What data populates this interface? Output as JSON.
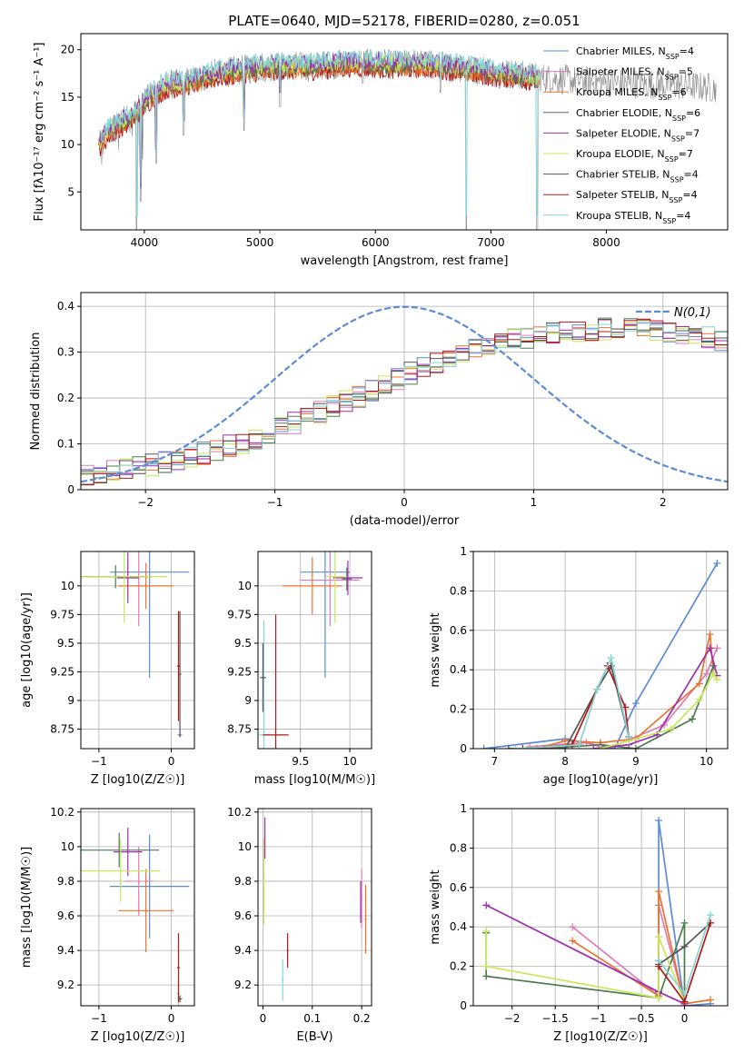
{
  "figure_title": "PLATE=0640, MJD=52178, FIBERID=0280, z=0.051",
  "colors": {
    "chabrier_miles": "#5B8BD6",
    "salpeter_miles": "#E47AB4",
    "kroupa_miles": "#E8742C",
    "chabrier_elodie": "#4E7A50",
    "salpeter_elodie": "#9B2FAE",
    "kroupa_elodie": "#C8E65A",
    "chabrier_stelib": "#555555",
    "salpeter_stelib": "#B21818",
    "kroupa_stelib": "#86D4D4",
    "normal_curve": "#5B8BD6"
  },
  "legend": [
    {
      "key": "chabrier_miles",
      "prefix": "Chabrier MILES, N",
      "sub": "SSP",
      "suffix": "=4"
    },
    {
      "key": "salpeter_miles",
      "prefix": "Salpeter MILES, N",
      "sub": "SSP",
      "suffix": "=5"
    },
    {
      "key": "kroupa_miles",
      "prefix": "Kroupa MILES, N",
      "sub": "SSP",
      "suffix": "=6"
    },
    {
      "key": "chabrier_elodie",
      "prefix": "Chabrier ELODIE, N",
      "sub": "SSP",
      "suffix": "=6"
    },
    {
      "key": "salpeter_elodie",
      "prefix": "Salpeter ELODIE, N",
      "sub": "SSP",
      "suffix": "=7"
    },
    {
      "key": "kroupa_elodie",
      "prefix": "Kroupa ELODIE, N",
      "sub": "SSP",
      "suffix": "=7"
    },
    {
      "key": "chabrier_stelib",
      "prefix": "Chabrier STELIB, N",
      "sub": "SSP",
      "suffix": "=4"
    },
    {
      "key": "salpeter_stelib",
      "prefix": "Salpeter STELIB, N",
      "sub": "SSP",
      "suffix": "=4"
    },
    {
      "key": "kroupa_stelib",
      "prefix": "Kroupa STELIB, N",
      "sub": "SSP",
      "suffix": "=4"
    }
  ],
  "chart_data": [
    {
      "id": "spectrum",
      "type": "line",
      "xlabel": "wavelength [Angstrom, rest frame]",
      "ylabel": "Flux [fλ10⁻¹⁷ erg cm⁻² s⁻¹ A⁻¹]",
      "xlim": [
        3450,
        9050
      ],
      "ylim": [
        1,
        21.7
      ],
      "xticks": [
        4000,
        5000,
        6000,
        7000,
        8000
      ],
      "yticks": [
        5,
        10,
        15,
        20
      ],
      "grid": false,
      "legend_position": "upper right",
      "continuum_x": [
        3600,
        3700,
        3800,
        3900,
        4000,
        4100,
        4200,
        4300,
        4400,
        4600,
        4800,
        5000,
        5200,
        5400,
        5600,
        5800,
        6000,
        6200,
        6400,
        6600,
        6800,
        7000,
        7200,
        7400,
        7500,
        7700,
        7900,
        8100,
        8300,
        8500,
        8700,
        8900
      ],
      "continuum_y": [
        10.0,
        11.5,
        12.3,
        13.0,
        14.5,
        15.6,
        16.3,
        16.4,
        16.7,
        17.4,
        17.8,
        18.1,
        18.3,
        18.2,
        18.4,
        18.6,
        18.5,
        18.4,
        18.5,
        18.3,
        18.0,
        17.6,
        17.4,
        17.1,
        17.0,
        16.8,
        16.6,
        16.5,
        16.4,
        16.3,
        16.2,
        16.0
      ],
      "model_xlim": [
        3600,
        7420
      ],
      "absorption_dips": [
        [
          3934,
          1.0
        ],
        [
          3969,
          4.0
        ],
        [
          4102,
          8.0
        ],
        [
          4340,
          11.0
        ],
        [
          4861,
          11.5
        ],
        [
          5175,
          14.0
        ],
        [
          5890,
          16.5
        ],
        [
          6563,
          15.5
        ],
        [
          6786,
          1.0
        ],
        [
          7400,
          1.0
        ]
      ]
    },
    {
      "id": "residual_hist",
      "type": "histogram",
      "xlabel": "(data-model)/error",
      "ylabel": "Normed distribution",
      "xlim": [
        -2.5,
        2.5
      ],
      "ylim": [
        0,
        0.43
      ],
      "xticks": [
        -2,
        -1,
        0,
        1,
        2
      ],
      "yticks": [
        0.0,
        0.1,
        0.2,
        0.3,
        0.4
      ],
      "grid": true,
      "bin_width": 0.1,
      "bin_start": -2.5,
      "mean_profile": [
        0.035,
        0.038,
        0.042,
        0.046,
        0.05,
        0.055,
        0.06,
        0.066,
        0.072,
        0.079,
        0.087,
        0.095,
        0.104,
        0.113,
        0.123,
        0.134,
        0.145,
        0.156,
        0.168,
        0.18,
        0.192,
        0.205,
        0.217,
        0.23,
        0.242,
        0.254,
        0.265,
        0.276,
        0.286,
        0.296,
        0.305,
        0.313,
        0.32,
        0.326,
        0.331,
        0.335,
        0.339,
        0.342,
        0.345,
        0.347,
        0.35,
        0.351,
        0.351,
        0.35,
        0.348,
        0.345,
        0.342,
        0.338,
        0.333,
        0.327,
        0.32,
        0.312,
        0.303,
        0.294,
        0.284,
        0.273,
        0.262,
        0.25,
        0.238,
        0.226,
        0.214,
        0.202,
        0.19,
        0.178,
        0.166,
        0.155,
        0.144,
        0.134,
        0.124,
        0.115,
        0.106,
        0.098,
        0.09,
        0.083,
        0.076,
        0.07,
        0.064,
        0.059,
        0.054,
        0.05,
        0.046,
        0.042,
        0.039,
        0.036,
        0.033,
        0.031,
        0.029,
        0.027,
        0.025,
        0.023,
        0.022,
        0.021,
        0.02,
        0.019,
        0.018,
        0.017,
        0.016,
        0.015,
        0.014,
        0.013
      ],
      "reference_curve": {
        "label": "N(0,1)",
        "mu": 0,
        "sigma": 1
      }
    },
    {
      "id": "age_vs_Z",
      "type": "errorbar",
      "xlabel": "Z [log10(Z/Z☉)]",
      "ylabel": "age  [log10(age/yr)]",
      "xlim": [
        -1.25,
        0.32
      ],
      "ylim": [
        8.58,
        10.3
      ],
      "xticks": [
        -1,
        0
      ],
      "yticks": [
        8.75,
        9.0,
        9.25,
        9.5,
        9.75,
        10.0
      ],
      "grid": true,
      "points": [
        {
          "key": "chabrier_miles",
          "x": -0.3,
          "xerr": 0.55,
          "y": 10.12,
          "yerr": 0.92
        },
        {
          "key": "chabrier_miles",
          "x": 0.12,
          "xerr": 0.03,
          "y": 8.7,
          "yerr": 0.02
        },
        {
          "key": "salpeter_miles",
          "x": -0.45,
          "xerr": 0.2,
          "y": 10.08,
          "yerr": 0.43
        },
        {
          "key": "kroupa_miles",
          "x": -0.35,
          "xerr": 0.38,
          "y": 10.0,
          "yerr": 0.2
        },
        {
          "key": "chabrier_elodie",
          "x": -0.77,
          "xerr": 0.5,
          "y": 10.08,
          "yerr": 0.1
        },
        {
          "key": "salpeter_elodie",
          "x": -0.6,
          "xerr": 0.15,
          "y": 10.07,
          "yerr": 0.22
        },
        {
          "key": "kroupa_elodie",
          "x": -0.65,
          "xerr": 0.6,
          "y": 10.08,
          "yerr": 0.4
        },
        {
          "key": "chabrier_stelib",
          "x": 0.12,
          "xerr": 0.02,
          "y": 9.23,
          "yerr": 0.55
        },
        {
          "key": "salpeter_stelib",
          "x": 0.1,
          "xerr": 0.02,
          "y": 9.3,
          "yerr": 0.48
        }
      ]
    },
    {
      "id": "age_vs_mass",
      "type": "errorbar",
      "xlabel": "mass [log10(M/M☉)]",
      "ylabel": "",
      "xlim": [
        9.07,
        10.22
      ],
      "ylim": [
        8.58,
        10.3
      ],
      "xticks": [
        9.5,
        10.0
      ],
      "yticks": [
        8.75,
        9.0,
        9.25,
        9.5,
        9.75,
        10.0
      ],
      "grid": true,
      "points": [
        {
          "key": "chabrier_miles",
          "x": 9.75,
          "xerr": 0.25,
          "y": 10.12,
          "yerr": 0.92
        },
        {
          "key": "salpeter_miles",
          "x": 9.8,
          "xerr": 0.3,
          "y": 10.05,
          "yerr": 0.4
        },
        {
          "key": "kroupa_miles",
          "x": 9.62,
          "xerr": 0.3,
          "y": 10.0,
          "yerr": 0.25
        },
        {
          "key": "chabrier_elodie",
          "x": 9.97,
          "xerr": 0.05,
          "y": 10.06,
          "yerr": 0.1
        },
        {
          "key": "salpeter_elodie",
          "x": 9.98,
          "xerr": 0.15,
          "y": 10.07,
          "yerr": 0.15
        },
        {
          "key": "kroupa_elodie",
          "x": 9.85,
          "xerr": 0.1,
          "y": 10.08,
          "yerr": 0.4
        },
        {
          "key": "kroupa_stelib",
          "x": 9.13,
          "xerr": 0.05,
          "y": 8.7,
          "yerr": 1.0
        },
        {
          "key": "salpeter_stelib",
          "x": 9.25,
          "xerr": 0.13,
          "y": 8.7,
          "yerr": 1.05
        },
        {
          "key": "chabrier_stelib",
          "x": 9.12,
          "xerr": 0.03,
          "y": 9.2,
          "yerr": 0.3
        }
      ]
    },
    {
      "id": "weight_vs_age",
      "type": "line",
      "xlabel": "age  [log10(age/yr)]",
      "ylabel": "mass weight",
      "xlim": [
        6.7,
        10.3
      ],
      "ylim": [
        0,
        1.0
      ],
      "xticks": [
        7,
        8,
        9,
        10
      ],
      "yticks": [
        0.0,
        0.2,
        0.4,
        0.6,
        0.8,
        1.0
      ],
      "grid": true,
      "series": [
        {
          "key": "chabrier_miles",
          "x": [
            6.85,
            8.0,
            8.7,
            9.0,
            10.15
          ],
          "y": [
            0.0,
            0.05,
            0.0,
            0.23,
            0.94
          ]
        },
        {
          "key": "salpeter_miles",
          "x": [
            7.5,
            8.3,
            8.6,
            9.4,
            10.0,
            10.15
          ],
          "y": [
            0.01,
            0.03,
            0.0,
            0.12,
            0.38,
            0.51
          ]
        },
        {
          "key": "kroupa_miles",
          "x": [
            7.6,
            8.0,
            8.5,
            9.0,
            9.9,
            10.05,
            10.1
          ],
          "y": [
            0.0,
            0.04,
            0.03,
            0.05,
            0.33,
            0.58,
            0.38
          ]
        },
        {
          "key": "chabrier_elodie",
          "x": [
            7.7,
            8.5,
            9.0,
            9.8,
            10.1
          ],
          "y": [
            0.0,
            0.02,
            0.0,
            0.15,
            0.42
          ]
        },
        {
          "key": "salpeter_elodie",
          "x": [
            8.4,
            8.9,
            9.3,
            10.05,
            10.15
          ],
          "y": [
            0.0,
            0.02,
            0.07,
            0.51,
            0.37
          ]
        },
        {
          "key": "kroupa_elodie",
          "x": [
            8.5,
            8.9,
            9.5,
            9.9,
            10.1,
            10.15
          ],
          "y": [
            0.0,
            0.04,
            0.1,
            0.25,
            0.38,
            0.35
          ]
        },
        {
          "key": "chabrier_stelib",
          "x": [
            7.2,
            8.0,
            8.45,
            8.65,
            8.9
          ],
          "y": [
            0.0,
            0.0,
            0.3,
            0.42,
            0.06
          ]
        },
        {
          "key": "salpeter_stelib",
          "x": [
            7.4,
            8.1,
            8.6,
            8.85,
            8.9
          ],
          "y": [
            0.0,
            0.02,
            0.42,
            0.21,
            0.06
          ]
        },
        {
          "key": "kroupa_stelib",
          "x": [
            7.3,
            8.2,
            8.45,
            8.65,
            8.9
          ],
          "y": [
            0.0,
            0.02,
            0.3,
            0.46,
            0.06
          ]
        }
      ]
    },
    {
      "id": "mass_vs_Z",
      "type": "errorbar",
      "xlabel": "Z [log10(Z/Z☉)]",
      "ylabel": "mass [log10(M/M☉)]",
      "xlim": [
        -1.25,
        0.32
      ],
      "ylim": [
        9.08,
        10.22
      ],
      "xticks": [
        -1,
        0
      ],
      "yticks": [
        9.2,
        9.4,
        9.6,
        9.8,
        10.0,
        10.2
      ],
      "grid": true,
      "points": [
        {
          "key": "chabrier_miles",
          "x": -0.3,
          "xerr": 0.55,
          "y": 9.77,
          "yerr": 0.3
        },
        {
          "key": "salpeter_miles",
          "x": -0.45,
          "xerr": 0.2,
          "y": 9.8,
          "yerr": 0.2
        },
        {
          "key": "kroupa_miles",
          "x": -0.35,
          "xerr": 0.38,
          "y": 9.63,
          "yerr": 0.24
        },
        {
          "key": "chabrier_elodie",
          "x": -0.72,
          "xerr": 0.55,
          "y": 9.98,
          "yerr": 0.1
        },
        {
          "key": "salpeter_elodie",
          "x": -0.6,
          "xerr": 0.2,
          "y": 9.97,
          "yerr": 0.14
        },
        {
          "key": "kroupa_elodie",
          "x": -0.7,
          "xerr": 0.55,
          "y": 9.86,
          "yerr": 0.18
        },
        {
          "key": "kroupa_stelib",
          "x": 0.1,
          "xerr": 0.02,
          "y": 9.15,
          "yerr": 0.08
        },
        {
          "key": "salpeter_stelib",
          "x": 0.1,
          "xerr": 0.02,
          "y": 9.3,
          "yerr": 0.2
        },
        {
          "key": "chabrier_stelib",
          "x": 0.12,
          "xerr": 0.03,
          "y": 9.12,
          "yerr": 0.02
        }
      ]
    },
    {
      "id": "mass_vs_ebv",
      "type": "errorbar",
      "xlabel": "E(B-V)",
      "ylabel": "",
      "xlim": [
        -0.01,
        0.22
      ],
      "ylim": [
        9.08,
        10.22
      ],
      "xticks": [
        0.0,
        0.1,
        0.2
      ],
      "yticks": [
        9.2,
        9.4,
        9.6,
        9.8,
        10.0,
        10.2
      ],
      "grid": true,
      "points": [
        {
          "key": "kroupa_elodie",
          "x": 0.002,
          "xerr": 0.002,
          "y": 9.8,
          "yerr": 0.25
        },
        {
          "key": "salpeter_elodie",
          "x": 0.004,
          "xerr": 0.001,
          "y": 10.05,
          "yerr": 0.12
        },
        {
          "key": "kroupa_stelib",
          "x": 0.04,
          "xerr": 0.002,
          "y": 9.23,
          "yerr": 0.12
        },
        {
          "key": "salpeter_stelib",
          "x": 0.05,
          "xerr": 0.002,
          "y": 9.4,
          "yerr": 0.1
        },
        {
          "key": "salpeter_miles",
          "x": 0.2,
          "xerr": 0.002,
          "y": 9.7,
          "yerr": 0.17
        },
        {
          "key": "kroupa_miles",
          "x": 0.208,
          "xerr": 0.002,
          "y": 9.58,
          "yerr": 0.2
        },
        {
          "key": "salpeter_elodie",
          "x": 0.198,
          "xerr": 0.001,
          "y": 9.68,
          "yerr": 0.12
        }
      ]
    },
    {
      "id": "weight_vs_Z",
      "type": "line",
      "xlabel": "Z [log10(Z/Z☉)]",
      "ylabel": "mass weight",
      "xlim": [
        -2.45,
        0.5
      ],
      "ylim": [
        0,
        1.0
      ],
      "xticks": [
        -2.0,
        -1.5,
        -1.0,
        -0.5,
        0.0
      ],
      "yticks": [
        0.0,
        0.2,
        0.4,
        0.6,
        0.8,
        1.0
      ],
      "grid": true,
      "series": [
        {
          "key": "chabrier_miles",
          "x": [
            -0.3,
            -0.3,
            0.0,
            0.3
          ],
          "y": [
            0.23,
            0.94,
            0.0,
            0.01
          ]
        },
        {
          "key": "salpeter_miles",
          "x": [
            -1.3,
            -0.3,
            -0.3,
            0.0
          ],
          "y": [
            0.4,
            0.05,
            0.51,
            0.01
          ]
        },
        {
          "key": "kroupa_miles",
          "x": [
            -1.3,
            -0.3,
            -0.3,
            0.0,
            0.3
          ],
          "y": [
            0.33,
            0.05,
            0.58,
            0.01,
            0.03
          ]
        },
        {
          "key": "chabrier_elodie",
          "x": [
            -2.3,
            -2.3,
            -0.3,
            0.0,
            0.0
          ],
          "y": [
            0.37,
            0.15,
            0.04,
            0.42,
            0.02
          ]
        },
        {
          "key": "salpeter_elodie",
          "x": [
            -2.3,
            -0.3,
            0.0
          ],
          "y": [
            0.51,
            0.07,
            0.01
          ]
        },
        {
          "key": "kroupa_elodie",
          "x": [
            -2.3,
            -2.3,
            -0.3,
            -0.3,
            0.0
          ],
          "y": [
            0.38,
            0.2,
            0.04,
            0.35,
            0.02
          ]
        },
        {
          "key": "chabrier_stelib",
          "x": [
            -0.3,
            0.0,
            0.3
          ],
          "y": [
            0.21,
            0.3,
            0.42
          ]
        },
        {
          "key": "salpeter_stelib",
          "x": [
            -0.3,
            0.0,
            0.3
          ],
          "y": [
            0.2,
            0.02,
            0.42
          ]
        },
        {
          "key": "kroupa_stelib",
          "x": [
            -0.3,
            0.0,
            0.3
          ],
          "y": [
            0.23,
            0.06,
            0.46
          ]
        }
      ]
    }
  ]
}
